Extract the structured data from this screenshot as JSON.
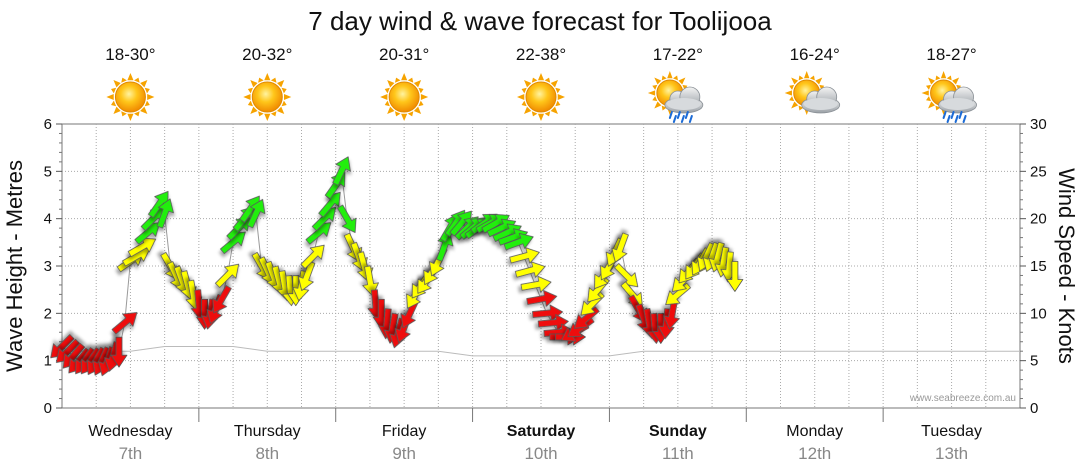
{
  "chart_data": {
    "type": "line",
    "title": "7 day wind & wave forecast for Toolijooa",
    "y_left": {
      "label": "Wave Height - Metres",
      "range": [
        0,
        6
      ],
      "ticks": [
        "0",
        "1",
        "2",
        "3",
        "4",
        "5",
        "6"
      ]
    },
    "y_right": {
      "label": "Wind Speed - Knots",
      "range": [
        0,
        30
      ],
      "ticks": [
        "0",
        "5",
        "10",
        "15",
        "20",
        "25",
        "30"
      ]
    },
    "days": [
      {
        "name": "Wednesday",
        "date": "7th",
        "temp": "18-30°",
        "weather": "sunny-icon",
        "bold": false
      },
      {
        "name": "Thursday",
        "date": "8th",
        "temp": "20-32°",
        "weather": "sunny-icon",
        "bold": false
      },
      {
        "name": "Friday",
        "date": "9th",
        "temp": "20-31°",
        "weather": "sunny-icon",
        "bold": false
      },
      {
        "name": "Saturday",
        "date": "10th",
        "temp": "22-38°",
        "weather": "sunny-icon",
        "bold": true
      },
      {
        "name": "Sunday",
        "date": "11th",
        "temp": "17-22°",
        "weather": "sun-cloud-rain-icon",
        "bold": true
      },
      {
        "name": "Monday",
        "date": "12th",
        "temp": "16-24°",
        "weather": "sun-cloud-icon",
        "bold": false
      },
      {
        "name": "Tuesday",
        "date": "13th",
        "temp": "18-27°",
        "weather": "sun-cloud-rain-icon",
        "bold": false
      }
    ],
    "wave_series": {
      "name": "Wave Height",
      "x_hours": [
        0,
        6,
        12,
        18,
        24,
        30,
        36,
        42,
        48,
        54,
        60,
        66,
        72,
        78,
        84,
        90,
        96,
        102,
        108,
        114,
        120,
        126,
        132,
        138,
        144,
        150,
        156,
        162,
        168
      ],
      "values": [
        1.2,
        1.2,
        1.2,
        1.3,
        1.3,
        1.3,
        1.2,
        1.2,
        1.2,
        1.2,
        1.2,
        1.2,
        1.1,
        1.1,
        1.1,
        1.1,
        1.1,
        1.2,
        1.2,
        1.2,
        1.2,
        1.2,
        1.2,
        1.2,
        1.2,
        1.2,
        1.2,
        1.2,
        1.2
      ]
    },
    "wind_series": {
      "name": "Wind Speed",
      "points": [
        {
          "h": 0,
          "kt": 6.5,
          "dir": 45,
          "c": "red"
        },
        {
          "h": 1,
          "kt": 6,
          "dir": 45,
          "c": "red"
        },
        {
          "h": 2,
          "kt": 5.5,
          "dir": 40,
          "c": "red"
        },
        {
          "h": 3,
          "kt": 5,
          "dir": 40,
          "c": "red"
        },
        {
          "h": 4,
          "kt": 5,
          "dir": 35,
          "c": "red"
        },
        {
          "h": 5,
          "kt": 5,
          "dir": 35,
          "c": "red"
        },
        {
          "h": 6,
          "kt": 5,
          "dir": 30,
          "c": "red"
        },
        {
          "h": 7,
          "kt": 5,
          "dir": 25,
          "c": "red"
        },
        {
          "h": 8,
          "kt": 5,
          "dir": 20,
          "c": "red"
        },
        {
          "h": 9,
          "kt": 5.5,
          "dir": 15,
          "c": "red"
        },
        {
          "h": 10,
          "kt": 6,
          "dir": 0,
          "c": "red"
        },
        {
          "h": 11,
          "kt": 9,
          "dir": 230,
          "c": "red"
        },
        {
          "h": 12,
          "kt": 15.5,
          "dir": 235,
          "c": "yellow"
        },
        {
          "h": 13,
          "kt": 16,
          "dir": 240,
          "c": "yellow"
        },
        {
          "h": 14,
          "kt": 17,
          "dir": 240,
          "c": "yellow"
        },
        {
          "h": 15,
          "kt": 18.5,
          "dir": 230,
          "c": "green"
        },
        {
          "h": 16,
          "kt": 20,
          "dir": 225,
          "c": "green"
        },
        {
          "h": 17,
          "kt": 21.5,
          "dir": 215,
          "c": "green"
        },
        {
          "h": 18,
          "kt": 20.5,
          "dir": 200,
          "c": "green"
        },
        {
          "h": 19,
          "kt": 15,
          "dir": 330,
          "c": "yellow"
        },
        {
          "h": 20,
          "kt": 14,
          "dir": 335,
          "c": "yellow"
        },
        {
          "h": 21,
          "kt": 13.5,
          "dir": 340,
          "c": "yellow"
        },
        {
          "h": 22,
          "kt": 13,
          "dir": 345,
          "c": "yellow"
        },
        {
          "h": 23,
          "kt": 12,
          "dir": 350,
          "c": "yellow"
        },
        {
          "h": 24,
          "kt": 11,
          "dir": 355,
          "c": "red"
        },
        {
          "h": 25,
          "kt": 10,
          "dir": 0,
          "c": "red"
        },
        {
          "h": 26,
          "kt": 10,
          "dir": 10,
          "c": "red"
        },
        {
          "h": 27,
          "kt": 10.5,
          "dir": 20,
          "c": "red"
        },
        {
          "h": 28,
          "kt": 11.5,
          "dir": 30,
          "c": "red"
        },
        {
          "h": 29,
          "kt": 14,
          "dir": 225,
          "c": "yellow"
        },
        {
          "h": 30,
          "kt": 17.5,
          "dir": 230,
          "c": "green"
        },
        {
          "h": 31,
          "kt": 19,
          "dir": 225,
          "c": "green"
        },
        {
          "h": 32,
          "kt": 20,
          "dir": 220,
          "c": "green"
        },
        {
          "h": 33,
          "kt": 21,
          "dir": 215,
          "c": "green"
        },
        {
          "h": 34,
          "kt": 20.5,
          "dir": 205,
          "c": "green"
        },
        {
          "h": 35,
          "kt": 15,
          "dir": 330,
          "c": "yellow"
        },
        {
          "h": 36,
          "kt": 14.5,
          "dir": 335,
          "c": "yellow"
        },
        {
          "h": 37,
          "kt": 14,
          "dir": 340,
          "c": "yellow"
        },
        {
          "h": 38,
          "kt": 13.5,
          "dir": 345,
          "c": "yellow"
        },
        {
          "h": 39,
          "kt": 13,
          "dir": 350,
          "c": "yellow"
        },
        {
          "h": 40,
          "kt": 12.5,
          "dir": 355,
          "c": "yellow"
        },
        {
          "h": 41,
          "kt": 12.5,
          "dir": 0,
          "c": "yellow"
        },
        {
          "h": 42,
          "kt": 13,
          "dir": 10,
          "c": "yellow"
        },
        {
          "h": 43,
          "kt": 14,
          "dir": 20,
          "c": "yellow"
        },
        {
          "h": 44,
          "kt": 16,
          "dir": 225,
          "c": "yellow"
        },
        {
          "h": 45,
          "kt": 18.5,
          "dir": 230,
          "c": "green"
        },
        {
          "h": 46,
          "kt": 20,
          "dir": 225,
          "c": "green"
        },
        {
          "h": 47,
          "kt": 21.5,
          "dir": 220,
          "c": "green"
        },
        {
          "h": 48,
          "kt": 23.5,
          "dir": 215,
          "c": "green"
        },
        {
          "h": 49,
          "kt": 25,
          "dir": 205,
          "c": "green"
        },
        {
          "h": 50,
          "kt": 20,
          "dir": 330,
          "c": "green"
        },
        {
          "h": 51,
          "kt": 17,
          "dir": 335,
          "c": "yellow"
        },
        {
          "h": 52,
          "kt": 16,
          "dir": 340,
          "c": "yellow"
        },
        {
          "h": 53,
          "kt": 15,
          "dir": 345,
          "c": "yellow"
        },
        {
          "h": 54,
          "kt": 13.5,
          "dir": 350,
          "c": "yellow"
        },
        {
          "h": 55,
          "kt": 11,
          "dir": 355,
          "c": "red"
        },
        {
          "h": 56,
          "kt": 10,
          "dir": 0,
          "c": "red"
        },
        {
          "h": 57,
          "kt": 9,
          "dir": 5,
          "c": "red"
        },
        {
          "h": 58,
          "kt": 8.5,
          "dir": 10,
          "c": "red"
        },
        {
          "h": 59,
          "kt": 8,
          "dir": 15,
          "c": "red"
        },
        {
          "h": 60,
          "kt": 8.5,
          "dir": 20,
          "c": "red"
        },
        {
          "h": 61,
          "kt": 10,
          "dir": 25,
          "c": "red"
        },
        {
          "h": 62,
          "kt": 12,
          "dir": 30,
          "c": "yellow"
        },
        {
          "h": 63,
          "kt": 13,
          "dir": 35,
          "c": "yellow"
        },
        {
          "h": 64,
          "kt": 13.5,
          "dir": 35,
          "c": "yellow"
        },
        {
          "h": 65,
          "kt": 14.5,
          "dir": 30,
          "c": "yellow"
        },
        {
          "h": 66,
          "kt": 15.5,
          "dir": 25,
          "c": "yellow"
        },
        {
          "h": 67,
          "kt": 17,
          "dir": 200,
          "c": "green"
        },
        {
          "h": 68,
          "kt": 19,
          "dir": 210,
          "c": "green"
        },
        {
          "h": 69,
          "kt": 19.5,
          "dir": 215,
          "c": "green"
        },
        {
          "h": 70,
          "kt": 19.5,
          "dir": 220,
          "c": "green"
        },
        {
          "h": 71,
          "kt": 19,
          "dir": 225,
          "c": "green"
        },
        {
          "h": 72,
          "kt": 19,
          "dir": 230,
          "c": "green"
        },
        {
          "h": 73,
          "kt": 19,
          "dir": 235,
          "c": "green"
        },
        {
          "h": 74,
          "kt": 19.5,
          "dir": 235,
          "c": "green"
        },
        {
          "h": 75,
          "kt": 19.5,
          "dir": 240,
          "c": "green"
        },
        {
          "h": 76,
          "kt": 19.5,
          "dir": 240,
          "c": "green"
        },
        {
          "h": 77,
          "kt": 19,
          "dir": 245,
          "c": "green"
        },
        {
          "h": 78,
          "kt": 18.5,
          "dir": 245,
          "c": "green"
        },
        {
          "h": 79,
          "kt": 18,
          "dir": 250,
          "c": "green"
        },
        {
          "h": 80,
          "kt": 17.5,
          "dir": 250,
          "c": "green"
        },
        {
          "h": 81,
          "kt": 16,
          "dir": 255,
          "c": "yellow"
        },
        {
          "h": 82,
          "kt": 14.5,
          "dir": 255,
          "c": "yellow"
        },
        {
          "h": 83,
          "kt": 13,
          "dir": 260,
          "c": "yellow"
        },
        {
          "h": 84,
          "kt": 11.5,
          "dir": 260,
          "c": "red"
        },
        {
          "h": 85,
          "kt": 10,
          "dir": 265,
          "c": "red"
        },
        {
          "h": 86,
          "kt": 9,
          "dir": 265,
          "c": "red"
        },
        {
          "h": 87,
          "kt": 8,
          "dir": 265,
          "c": "red"
        },
        {
          "h": 88,
          "kt": 7.5,
          "dir": 270,
          "c": "red"
        },
        {
          "h": 89,
          "kt": 7.5,
          "dir": 270,
          "c": "red"
        },
        {
          "h": 90,
          "kt": 8,
          "dir": 60,
          "c": "red"
        },
        {
          "h": 91,
          "kt": 8.5,
          "dir": 55,
          "c": "red"
        },
        {
          "h": 92,
          "kt": 9.5,
          "dir": 50,
          "c": "red"
        },
        {
          "h": 93,
          "kt": 11,
          "dir": 45,
          "c": "yellow"
        },
        {
          "h": 94,
          "kt": 12.5,
          "dir": 40,
          "c": "yellow"
        },
        {
          "h": 95,
          "kt": 14,
          "dir": 35,
          "c": "yellow"
        },
        {
          "h": 96,
          "kt": 15,
          "dir": 30,
          "c": "yellow"
        },
        {
          "h": 97,
          "kt": 16.5,
          "dir": 25,
          "c": "yellow"
        },
        {
          "h": 98,
          "kt": 17,
          "dir": 20,
          "c": "yellow"
        },
        {
          "h": 99,
          "kt": 14,
          "dir": 315,
          "c": "yellow"
        },
        {
          "h": 100,
          "kt": 12,
          "dir": 320,
          "c": "yellow"
        },
        {
          "h": 101,
          "kt": 10.5,
          "dir": 330,
          "c": "red"
        },
        {
          "h": 102,
          "kt": 9.5,
          "dir": 340,
          "c": "red"
        },
        {
          "h": 103,
          "kt": 9,
          "dir": 350,
          "c": "red"
        },
        {
          "h": 104,
          "kt": 8.5,
          "dir": 355,
          "c": "red"
        },
        {
          "h": 105,
          "kt": 8.5,
          "dir": 0,
          "c": "red"
        },
        {
          "h": 106,
          "kt": 9,
          "dir": 5,
          "c": "red"
        },
        {
          "h": 107,
          "kt": 10,
          "dir": 10,
          "c": "red"
        },
        {
          "h": 108,
          "kt": 12,
          "dir": 50,
          "c": "yellow"
        },
        {
          "h": 109,
          "kt": 13.5,
          "dir": 45,
          "c": "yellow"
        },
        {
          "h": 110,
          "kt": 14.5,
          "dir": 40,
          "c": "yellow"
        },
        {
          "h": 111,
          "kt": 15,
          "dir": 35,
          "c": "yellow"
        },
        {
          "h": 112,
          "kt": 15.5,
          "dir": 30,
          "c": "yellow"
        },
        {
          "h": 113,
          "kt": 16,
          "dir": 25,
          "c": "yellow"
        },
        {
          "h": 114,
          "kt": 16,
          "dir": 20,
          "c": "yellow"
        },
        {
          "h": 115,
          "kt": 16,
          "dir": 15,
          "c": "yellow"
        },
        {
          "h": 116,
          "kt": 15.5,
          "dir": 10,
          "c": "yellow"
        },
        {
          "h": 117,
          "kt": 15,
          "dir": 5,
          "c": "yellow"
        },
        {
          "h": 118,
          "kt": 14,
          "dir": 0,
          "c": "yellow"
        }
      ],
      "colors": {
        "red": "#ee1111",
        "yellow": "#ffff00",
        "green": "#22ee11"
      }
    },
    "x_range_hours": [
      0,
      168
    ],
    "grid": true,
    "watermark": "www.seabreeze.com.au"
  }
}
